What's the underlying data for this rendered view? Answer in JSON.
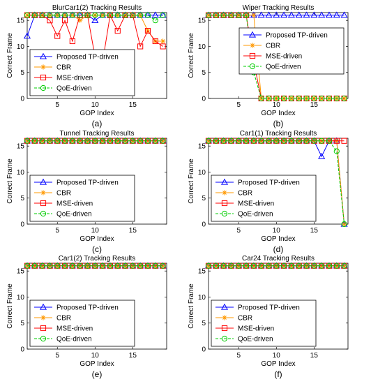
{
  "chart_data": [
    {
      "type": "line",
      "title": "BlurCar1(2) Tracking Results",
      "xlabel": "GOP Index",
      "ylabel": "Correct Frame",
      "caption": "(a)",
      "xlim": [
        1,
        19.5
      ],
      "ylim": [
        0,
        16.5
      ],
      "xticks": [
        5,
        10,
        15
      ],
      "yticks": [
        0,
        5,
        10,
        15
      ],
      "legend_position": "bottom-left",
      "x": [
        1,
        2,
        3,
        4,
        5,
        6,
        7,
        8,
        9,
        10,
        11,
        12,
        13,
        14,
        15,
        16,
        17,
        18,
        19
      ],
      "series": [
        {
          "name": "Proposed TP-driven",
          "color": "#0000ff",
          "marker": "triangle",
          "values": [
            12,
            16,
            16,
            16,
            16,
            16,
            16,
            16,
            16,
            15,
            16,
            16,
            16,
            16,
            16,
            16,
            16,
            16,
            16
          ]
        },
        {
          "name": "CBR",
          "color": "#ff9900",
          "marker": "star",
          "values": [
            16,
            16,
            16,
            16,
            16,
            16,
            16,
            15,
            16,
            16,
            16,
            16,
            16,
            16,
            16,
            16,
            13,
            11,
            11
          ]
        },
        {
          "name": "MSE-driven",
          "color": "#ff0000",
          "marker": "square",
          "values": [
            16,
            16,
            16,
            15,
            12,
            15,
            11,
            16,
            16,
            8,
            7,
            16,
            13,
            16,
            16,
            10,
            13,
            11,
            10
          ]
        },
        {
          "name": "QoE-driven",
          "color": "#00cc00",
          "marker": "circle",
          "values": [
            16,
            16,
            16,
            16,
            16,
            16,
            16,
            16,
            16,
            16,
            16,
            16,
            16,
            16,
            16,
            16,
            16,
            15,
            16
          ]
        }
      ]
    },
    {
      "type": "line",
      "title": "Wiper Tracking Results",
      "xlabel": "GOP Index",
      "ylabel": "Correct Frame",
      "caption": "(b)",
      "xlim": [
        1,
        19.5
      ],
      "ylim": [
        0,
        16.5
      ],
      "xticks": [
        5,
        10,
        15
      ],
      "yticks": [
        0,
        5,
        10,
        15
      ],
      "legend_position": "top-right",
      "x": [
        1,
        2,
        3,
        4,
        5,
        6,
        7,
        8,
        9,
        10,
        11,
        12,
        13,
        14,
        15,
        16,
        17,
        18,
        19
      ],
      "series": [
        {
          "name": "Proposed TP-driven",
          "color": "#0000ff",
          "marker": "triangle",
          "values": [
            16,
            16,
            16,
            16,
            16,
            16,
            16,
            16,
            16,
            16,
            16,
            16,
            16,
            16,
            16,
            16,
            16,
            16,
            16
          ]
        },
        {
          "name": "CBR",
          "color": "#ff9900",
          "marker": "star",
          "values": [
            16,
            16,
            16,
            16,
            16,
            16,
            16,
            0,
            0,
            0,
            0,
            0,
            0,
            0,
            0,
            0,
            0,
            0,
            0
          ]
        },
        {
          "name": "MSE-driven",
          "color": "#ff0000",
          "marker": "square",
          "values": [
            16,
            16,
            16,
            16,
            16,
            16,
            7,
            0,
            0,
            0,
            0,
            0,
            0,
            0,
            0,
            0,
            0,
            0,
            0
          ]
        },
        {
          "name": "QoE-driven",
          "color": "#00cc00",
          "marker": "circle",
          "values": [
            16,
            16,
            16,
            16,
            16,
            16,
            5,
            0,
            0,
            0,
            0,
            0,
            0,
            0,
            0,
            0,
            0,
            0,
            0
          ]
        }
      ]
    },
    {
      "type": "line",
      "title": "Tunnel Tracking Results",
      "xlabel": "GOP Index",
      "ylabel": "Correct Frame",
      "caption": "(c)",
      "xlim": [
        1,
        19.5
      ],
      "ylim": [
        0,
        16.5
      ],
      "xticks": [
        5,
        10,
        15
      ],
      "yticks": [
        0,
        5,
        10,
        15
      ],
      "legend_position": "bottom-left",
      "x": [
        1,
        2,
        3,
        4,
        5,
        6,
        7,
        8,
        9,
        10,
        11,
        12,
        13,
        14,
        15,
        16,
        17,
        18,
        19
      ],
      "series": [
        {
          "name": "Proposed TP-driven",
          "color": "#0000ff",
          "marker": "triangle",
          "values": [
            16,
            16,
            16,
            16,
            16,
            16,
            16,
            16,
            16,
            16,
            16,
            16,
            16,
            16,
            16,
            16,
            16,
            16,
            16
          ]
        },
        {
          "name": "CBR",
          "color": "#ff9900",
          "marker": "star",
          "values": [
            16,
            16,
            16,
            16,
            16,
            16,
            16,
            16,
            16,
            16,
            16,
            16,
            16,
            16,
            16,
            16,
            16,
            16,
            16
          ]
        },
        {
          "name": "MSE-driven",
          "color": "#ff0000",
          "marker": "square",
          "values": [
            16,
            16,
            16,
            16,
            16,
            16,
            16,
            16,
            16,
            16,
            16,
            16,
            16,
            16,
            16,
            16,
            16,
            16,
            16
          ]
        },
        {
          "name": "QoE-driven",
          "color": "#00cc00",
          "marker": "circle",
          "values": [
            16,
            16,
            16,
            16,
            16,
            16,
            16,
            16,
            16,
            16,
            16,
            16,
            16,
            16,
            16,
            16,
            16,
            16,
            16
          ]
        }
      ]
    },
    {
      "type": "line",
      "title": "Car1(1) Tracking Results",
      "xlabel": "GOP Index",
      "ylabel": "Correct Frame",
      "caption": "(d)",
      "xlim": [
        1,
        19.5
      ],
      "ylim": [
        0,
        16.5
      ],
      "xticks": [
        5,
        10,
        15
      ],
      "yticks": [
        0,
        5,
        10,
        15
      ],
      "legend_position": "bottom-left",
      "x": [
        1,
        2,
        3,
        4,
        5,
        6,
        7,
        8,
        9,
        10,
        11,
        12,
        13,
        14,
        15,
        16,
        17,
        18,
        19
      ],
      "series": [
        {
          "name": "Proposed TP-driven",
          "color": "#0000ff",
          "marker": "triangle",
          "values": [
            16,
            16,
            16,
            16,
            16,
            16,
            16,
            16,
            16,
            16,
            16,
            16,
            16,
            16,
            16,
            13,
            16,
            16,
            0
          ]
        },
        {
          "name": "CBR",
          "color": "#ff9900",
          "marker": "star",
          "values": [
            16,
            16,
            16,
            16,
            16,
            16,
            16,
            16,
            16,
            16,
            16,
            16,
            16,
            16,
            16,
            16,
            16,
            16,
            0
          ]
        },
        {
          "name": "MSE-driven",
          "color": "#ff0000",
          "marker": "square",
          "values": [
            16,
            16,
            16,
            16,
            16,
            16,
            16,
            16,
            16,
            16,
            16,
            16,
            16,
            16,
            16,
            16,
            16,
            16,
            16
          ]
        },
        {
          "name": "QoE-driven",
          "color": "#00cc00",
          "marker": "circle",
          "values": [
            16,
            16,
            16,
            16,
            16,
            16,
            16,
            16,
            16,
            16,
            16,
            16,
            16,
            16,
            16,
            16,
            16,
            14,
            0
          ]
        }
      ]
    },
    {
      "type": "line",
      "title": "Car1(2) Tracking Results",
      "xlabel": "GOP Index",
      "ylabel": "Correct Frame",
      "caption": "(e)",
      "xlim": [
        1,
        19.5
      ],
      "ylim": [
        0,
        16.5
      ],
      "xticks": [
        5,
        10,
        15
      ],
      "yticks": [
        0,
        5,
        10,
        15
      ],
      "legend_position": "bottom-left",
      "x": [
        1,
        2,
        3,
        4,
        5,
        6,
        7,
        8,
        9,
        10,
        11,
        12,
        13,
        14,
        15,
        16,
        17,
        18,
        19
      ],
      "series": [
        {
          "name": "Proposed TP-driven",
          "color": "#0000ff",
          "marker": "triangle",
          "values": [
            16,
            16,
            16,
            16,
            16,
            16,
            16,
            16,
            16,
            16,
            16,
            16,
            16,
            16,
            16,
            16,
            16,
            16,
            16
          ]
        },
        {
          "name": "CBR",
          "color": "#ff9900",
          "marker": "star",
          "values": [
            16,
            16,
            16,
            16,
            16,
            16,
            16,
            16,
            16,
            16,
            16,
            16,
            16,
            16,
            16,
            16,
            16,
            16,
            16
          ]
        },
        {
          "name": "MSE-driven",
          "color": "#ff0000",
          "marker": "square",
          "values": [
            16,
            16,
            16,
            16,
            16,
            16,
            16,
            16,
            16,
            16,
            16,
            16,
            16,
            16,
            16,
            16,
            16,
            16,
            16
          ]
        },
        {
          "name": "QoE-driven",
          "color": "#00cc00",
          "marker": "circle",
          "values": [
            16,
            16,
            16,
            16,
            16,
            16,
            16,
            16,
            16,
            16,
            16,
            16,
            16,
            16,
            16,
            16,
            16,
            16,
            16
          ]
        }
      ]
    },
    {
      "type": "line",
      "title": "Car24 Tracking Results",
      "xlabel": "GOP Index",
      "ylabel": "Correct Frame",
      "caption": "(f)",
      "xlim": [
        1,
        19.5
      ],
      "ylim": [
        0,
        16.5
      ],
      "xticks": [
        5,
        10,
        15
      ],
      "yticks": [
        0,
        5,
        10,
        15
      ],
      "legend_position": "bottom-left",
      "x": [
        1,
        2,
        3,
        4,
        5,
        6,
        7,
        8,
        9,
        10,
        11,
        12,
        13,
        14,
        15,
        16,
        17,
        18,
        19
      ],
      "series": [
        {
          "name": "Proposed TP-driven",
          "color": "#0000ff",
          "marker": "triangle",
          "values": [
            16,
            16,
            16,
            16,
            16,
            16,
            16,
            16,
            16,
            16,
            16,
            16,
            16,
            16,
            16,
            16,
            16,
            16,
            16
          ]
        },
        {
          "name": "CBR",
          "color": "#ff9900",
          "marker": "star",
          "values": [
            16,
            16,
            16,
            16,
            16,
            16,
            16,
            16,
            16,
            16,
            16,
            16,
            16,
            16,
            16,
            16,
            16,
            16,
            16
          ]
        },
        {
          "name": "MSE-driven",
          "color": "#ff0000",
          "marker": "square",
          "values": [
            16,
            16,
            16,
            16,
            16,
            16,
            16,
            16,
            16,
            16,
            16,
            16,
            16,
            16,
            16,
            16,
            16,
            16,
            16
          ]
        },
        {
          "name": "QoE-driven",
          "color": "#00cc00",
          "marker": "circle",
          "values": [
            16,
            16,
            16,
            16,
            16,
            16,
            16,
            16,
            16,
            16,
            16,
            16,
            16,
            16,
            16,
            16,
            16,
            16,
            16
          ]
        }
      ]
    }
  ]
}
